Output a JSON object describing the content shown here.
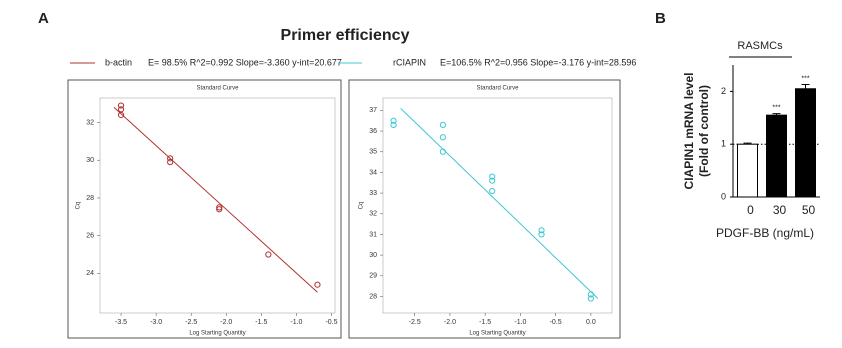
{
  "figure": {
    "panel_a": "A",
    "panel_b": "B",
    "title": "Primer efficiency",
    "legend": [
      {
        "name": "b-actin",
        "stats": "E= 98.5% R^2=0.992 Slope=-3.360 y-int=20.677",
        "color": "#b03030"
      },
      {
        "name": "rCIAPIN",
        "stats": "E=106.5% R^2=0.956 Slope=-3.176 y-int=28.596",
        "color": "#3cc8d2"
      }
    ]
  },
  "chart_data": [
    {
      "type": "scatter",
      "title": "Standard Curve",
      "x_label": "Log Starting Quantity",
      "y_label": "Cq",
      "color": "#b03030",
      "xlim": [
        -3.8,
        -0.45
      ],
      "ylim": [
        21.9,
        33.3
      ],
      "xticks": [
        -3.5,
        {
          "value": -3,
          "label": "-3.0"
        },
        -2.5,
        {
          "value": -2,
          "label": "-2.0"
        },
        -1.5,
        {
          "value": -1,
          "label": "-1.0"
        },
        -0.5
      ],
      "yticks": [
        24,
        26,
        28,
        30,
        32
      ],
      "x": [
        -3.5,
        -3.5,
        -3.5,
        -2.8,
        -2.8,
        -2.1,
        -2.1,
        -1.4,
        -0.7
      ],
      "values": [
        32.9,
        32.7,
        32.4,
        30.1,
        29.9,
        27.5,
        27.4,
        25.0,
        23.4
      ],
      "fit": {
        "x": [
          -3.6,
          -0.7
        ],
        "values": [
          32.8,
          23.0
        ]
      }
    },
    {
      "type": "scatter",
      "title": "Standard Curve",
      "x_label": "Log Starting Quantity",
      "y_label": "Cq",
      "color": "#3cc8d2",
      "xlim": [
        -2.95,
        0.3
      ],
      "ylim": [
        27.2,
        37.6
      ],
      "xticks": [
        -2.5,
        {
          "value": -2,
          "label": "-2.0"
        },
        -1.5,
        {
          "value": -1,
          "label": "-1.0"
        },
        -0.5,
        {
          "value": 0,
          "label": "0.0"
        }
      ],
      "yticks": [
        28,
        29,
        30,
        31,
        32,
        33,
        34,
        35,
        36,
        37
      ],
      "x": [
        -2.8,
        -2.8,
        -2.1,
        -2.1,
        -2.1,
        -1.4,
        -1.4,
        -1.4,
        -0.7,
        -0.7,
        0,
        0
      ],
      "values": [
        36.5,
        36.3,
        36.3,
        35.7,
        35.0,
        33.8,
        33.6,
        33.1,
        31.2,
        31.0,
        28.1,
        27.9
      ],
      "fit": {
        "x": [
          -2.7,
          0.1
        ],
        "values": [
          37.1,
          27.9
        ]
      }
    },
    {
      "type": "bar",
      "title": "RASMCs",
      "x_label": "PDGF-BB (ng/mL)",
      "y_label": [
        "CIAPIN1 mRNA level",
        "(Fold of control)"
      ],
      "categories": [
        "0",
        "30",
        "50"
      ],
      "values": [
        1.0,
        1.55,
        2.05
      ],
      "errors": [
        0.02,
        0.03,
        0.08
      ],
      "colors": [
        "#ffffff",
        "#000000",
        "#000000"
      ],
      "significance": [
        null,
        "***",
        "***"
      ],
      "ylim": [
        0,
        2.5
      ],
      "yticks": [
        0,
        1,
        2
      ],
      "reference_line": 1
    }
  ]
}
